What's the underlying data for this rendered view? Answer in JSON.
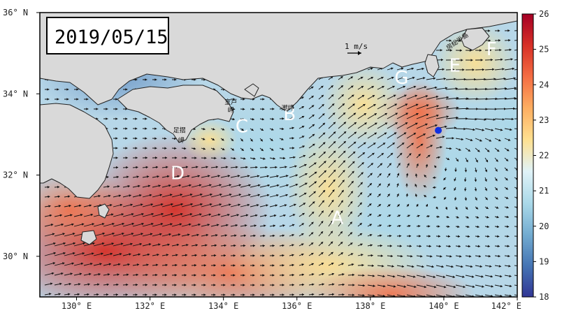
{
  "date_label": "2019/05/15",
  "scale_label": "1 m/s",
  "lat_ticks": [
    "36° N",
    "34° N",
    "32° N",
    "30° N"
  ],
  "lon_ticks": [
    "130° E",
    "132° E",
    "134° E",
    "136° E",
    "138° E",
    "140° E",
    "142° E"
  ],
  "colorbar_ticks": [
    "26",
    "25",
    "24",
    "23",
    "22",
    "21",
    "20",
    "19",
    "18"
  ],
  "colorbar_range": [
    18,
    26
  ],
  "colormap": [
    "#313695",
    "#4575b4",
    "#74add1",
    "#abd9e9",
    "#e0f3f8",
    "#fee090",
    "#fdae61",
    "#f46d43",
    "#d73027",
    "#a50026"
  ],
  "extent": {
    "lon": [
      129,
      142
    ],
    "lat": [
      29,
      36
    ]
  },
  "regions": [
    {
      "id": "A",
      "label": "A",
      "lon": 137.1,
      "lat": 30.8
    },
    {
      "id": "B",
      "label": "B",
      "lon": 135.8,
      "lat": 33.35
    },
    {
      "id": "C",
      "label": "C",
      "lon": 134.5,
      "lat": 33.05
    },
    {
      "id": "D",
      "label": "D",
      "lon": 132.75,
      "lat": 31.9
    },
    {
      "id": "E",
      "label": "E",
      "lon": 140.3,
      "lat": 34.55
    },
    {
      "id": "F",
      "label": "F",
      "lon": 141.3,
      "lat": 34.95
    },
    {
      "id": "G",
      "label": "G",
      "lon": 138.85,
      "lat": 34.25
    }
  ],
  "places": [
    {
      "label": "室戸",
      "lon": 134.2,
      "lat": 33.75
    },
    {
      "label": "岬",
      "lon": 134.2,
      "lat": 33.55
    },
    {
      "label": "潮岬",
      "lon": 135.75,
      "lat": 33.6
    },
    {
      "label": "足摺",
      "lon": 132.8,
      "lat": 33.05
    },
    {
      "label": "岬",
      "lon": 132.85,
      "lat": 32.8
    },
    {
      "label": "房総半島",
      "lon": 140.4,
      "lat": 35.25
    }
  ],
  "marker": {
    "lon": 139.85,
    "lat": 33.1,
    "color": "#1030e0"
  },
  "land_color": "#d9d9d9"
}
